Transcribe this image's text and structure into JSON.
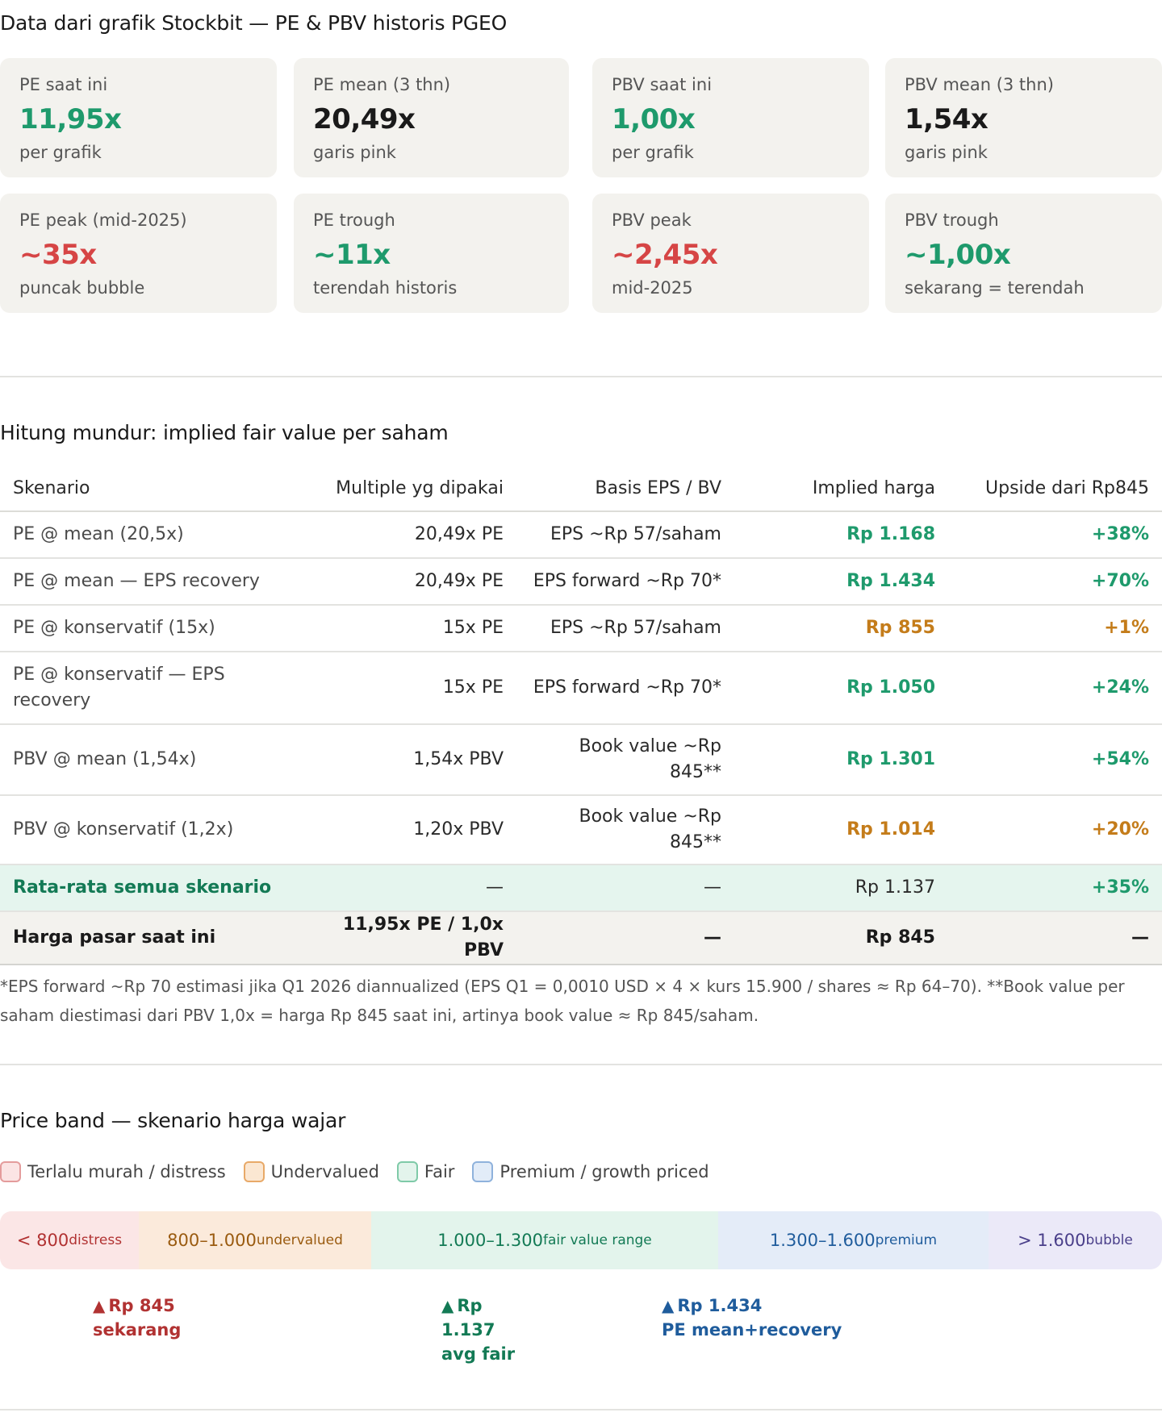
{
  "section1": {
    "title": "Data dari grafik Stockbit — PE & PBV historis PGEO",
    "cards_row1": [
      {
        "label": "PE saat ini",
        "value": "11,95x",
        "sub": "per grafik",
        "color": "#1e9a6c"
      },
      {
        "label": "PE mean (3 thn)",
        "value": "20,49x",
        "sub": "garis pink",
        "color": "#1a1a1a"
      },
      {
        "label": "PBV saat ini",
        "value": "1,00x",
        "sub": "per grafik",
        "color": "#1e9a6c"
      },
      {
        "label": "PBV mean (3 thn)",
        "value": "1,54x",
        "sub": "garis pink",
        "color": "#1a1a1a"
      }
    ],
    "cards_row2": [
      {
        "label": "PE peak (mid-2025)",
        "value": "~35x",
        "sub": "puncak bubble",
        "color": "#d64545"
      },
      {
        "label": "PE trough",
        "value": "~11x",
        "sub": "terendah historis",
        "color": "#1e9a6c"
      },
      {
        "label": "PBV peak",
        "value": "~2,45x",
        "sub": "mid-2025",
        "color": "#d64545"
      },
      {
        "label": "PBV trough",
        "value": "~1,00x",
        "sub": "sekarang = terendah",
        "color": "#1e9a6c"
      }
    ]
  },
  "section2": {
    "title": "Hitung mundur: implied fair value per saham",
    "headers": [
      "Skenario",
      "Multiple yg dipakai",
      "Basis EPS / BV",
      "Implied harga",
      "Upside dari Rp845"
    ],
    "rows": [
      [
        "PE @ mean (20,5x)",
        "20,49x PE",
        "EPS ~Rp 57/saham",
        "Rp 1.168",
        "+38%"
      ],
      [
        "PE @ mean — EPS recovery",
        "20,49x PE",
        "EPS forward ~Rp 70*",
        "Rp 1.434",
        "+70%"
      ],
      [
        "PE @ konservatif (15x)",
        "15x PE",
        "EPS ~Rp 57/saham",
        "Rp 855",
        "+1%"
      ],
      [
        "PE @ konservatif — EPS recovery",
        "15x PE",
        "EPS forward ~Rp 70*",
        "Rp 1.050",
        "+24%"
      ],
      [
        "PBV @ mean (1,54x)",
        "1,54x PBV",
        "Book value ~Rp 845**",
        "Rp 1.301",
        "+54%"
      ],
      [
        "PBV @ konservatif (1,2x)",
        "1,20x PBV",
        "Book value ~Rp 845**",
        "Rp 1.014",
        "+20%"
      ]
    ],
    "avg_row": [
      "Rata-rata semua skenario",
      "—",
      "—",
      "Rp 1.137",
      "+35%"
    ],
    "market_row": [
      "Harga pasar saat ini",
      "11,95x PE / 1,0x PBV",
      "—",
      "Rp 845",
      "—"
    ],
    "note": "*EPS forward ~Rp 70 estimasi jika Q1 2026 diannualized (EPS Q1 = 0,0010 USD × 4 × kurs 15.900 / shares ≈ Rp 64–70). **Book value per saham diestimasi dari PBV 1,0x = harga Rp 845 saat ini, artinya book value ≈ Rp 845/saham."
  },
  "section3": {
    "title": "Price band — skenario harga wajar",
    "legend": [
      "Terlalu murah / distress",
      "Undervalued",
      "Fair",
      "Premium / growth priced"
    ],
    "band": [
      {
        "range": "< 800",
        "tag": "distress"
      },
      {
        "range": "800–1.000",
        "tag": "undervalued"
      },
      {
        "range": "1.000–1.300",
        "tag": "fair value range"
      },
      {
        "range": "1.300–1.600",
        "tag": "premium"
      },
      {
        "range": "> 1.600",
        "tag": "bubble"
      }
    ],
    "markers": [
      {
        "line1": "Rp 845",
        "line2": "sekarang",
        "line3": ""
      },
      {
        "line1": "Rp",
        "line2": "1.137",
        "line3": "avg fair"
      },
      {
        "line1": "Rp 1.434",
        "line2": "PE mean+recovery",
        "line3": ""
      }
    ],
    "marker_glyph": "▲"
  }
}
